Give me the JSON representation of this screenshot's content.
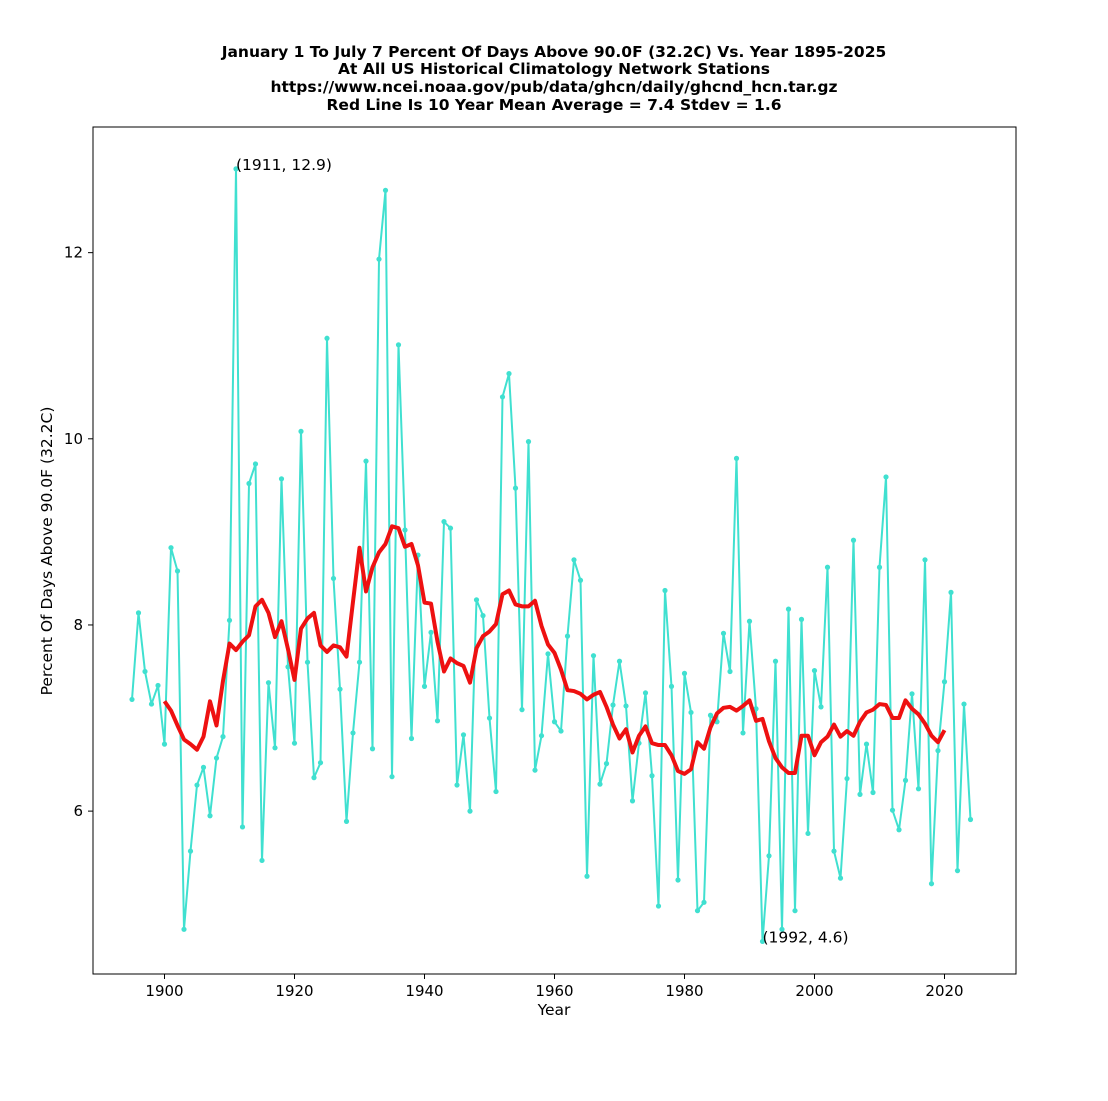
{
  "chart_data": {
    "type": "line",
    "title_lines": [
      "January 1 To July 7 Percent Of Days Above 90.0F (32.2C) Vs. Year 1895-2025",
      "At All US Historical Climatology Network Stations",
      "https://www.ncei.noaa.gov/pub/data/ghcn/daily/ghcnd_hcn.tar.gz",
      "Red Line Is 10 Year Mean  Average = 7.4 Stdev = 1.6"
    ],
    "xlabel": "Year",
    "ylabel": "Percent Of Days Above 90.0F (32.2C)",
    "xlim": [
      1889,
      2031
    ],
    "ylim": [
      4.25,
      13.35
    ],
    "xticks": [
      1900,
      1920,
      1940,
      1960,
      1980,
      2000,
      2020
    ],
    "yticks": [
      6,
      8,
      10,
      12
    ],
    "grid": false,
    "series": [
      {
        "color": "#40e0d0",
        "marker": "dot",
        "x": [
          1895,
          1896,
          1897,
          1898,
          1899,
          1900,
          1901,
          1902,
          1903,
          1904,
          1905,
          1906,
          1907,
          1908,
          1909,
          1910,
          1911,
          1912,
          1913,
          1914,
          1915,
          1916,
          1917,
          1918,
          1919,
          1920,
          1921,
          1922,
          1923,
          1924,
          1925,
          1926,
          1927,
          1928,
          1929,
          1930,
          1931,
          1932,
          1933,
          1934,
          1935,
          1936,
          1937,
          1938,
          1939,
          1940,
          1941,
          1942,
          1943,
          1944,
          1945,
          1946,
          1947,
          1948,
          1949,
          1950,
          1951,
          1952,
          1953,
          1954,
          1955,
          1956,
          1957,
          1958,
          1959,
          1960,
          1961,
          1962,
          1963,
          1964,
          1965,
          1966,
          1967,
          1968,
          1969,
          1970,
          1971,
          1972,
          1973,
          1974,
          1975,
          1976,
          1977,
          1978,
          1979,
          1980,
          1981,
          1982,
          1983,
          1984,
          1985,
          1986,
          1987,
          1988,
          1989,
          1990,
          1991,
          1992,
          1993,
          1994,
          1995,
          1996,
          1997,
          1998,
          1999,
          2000,
          2001,
          2002,
          2003,
          2004,
          2005,
          2006,
          2007,
          2008,
          2009,
          2010,
          2011,
          2012,
          2013,
          2014,
          2015,
          2016,
          2017,
          2018,
          2019,
          2020,
          2021,
          2022,
          2023,
          2024,
          2025
        ],
        "values": [
          7.2,
          8.13,
          7.5,
          7.15,
          7.35,
          6.72,
          8.83,
          8.58,
          4.73,
          5.57,
          6.28,
          6.47,
          5.95,
          6.57,
          6.8,
          8.05,
          12.9,
          5.83,
          9.52,
          9.73,
          5.47,
          7.38,
          6.68,
          9.57,
          7.55,
          6.73,
          10.08,
          7.6,
          6.36,
          6.52,
          11.08,
          8.5,
          7.31,
          5.89,
          6.84,
          7.6,
          9.76,
          6.67,
          11.93,
          12.67,
          6.37,
          11.01,
          9.02,
          6.78,
          8.75,
          7.34,
          7.92,
          6.97,
          9.11,
          9.04,
          6.28,
          6.82,
          6.0,
          8.27,
          8.1,
          7.0,
          6.21,
          10.45,
          10.7,
          9.47,
          7.09,
          9.97,
          6.44,
          6.81,
          7.69,
          6.96,
          6.86,
          7.88,
          8.7,
          8.48,
          5.3,
          7.67,
          6.29,
          6.51,
          7.14,
          7.61,
          7.13,
          6.11,
          6.73,
          7.27,
          6.38,
          4.98,
          8.37,
          7.34,
          5.26,
          7.48,
          7.06,
          4.93,
          5.02,
          7.03,
          6.96,
          7.91,
          7.5,
          9.79,
          6.84,
          8.04,
          7.1,
          4.6,
          5.52,
          7.61,
          4.73,
          8.17,
          4.93,
          8.06,
          5.76,
          7.51,
          7.12,
          8.62,
          5.57,
          5.28,
          6.35,
          8.91,
          6.18,
          6.72,
          6.2,
          8.62,
          9.59,
          6.01,
          5.8,
          6.33,
          7.26,
          6.24,
          8.7,
          5.22,
          6.65,
          7.39,
          8.35,
          5.36,
          7.15,
          5.91,
          null
        ]
      },
      {
        "color": "#ee1111",
        "marker": "none",
        "x": [
          1900,
          1901,
          1902,
          1903,
          1904,
          1905,
          1906,
          1907,
          1908,
          1909,
          1910,
          1911,
          1912,
          1913,
          1914,
          1915,
          1916,
          1917,
          1918,
          1919,
          1920,
          1921,
          1922,
          1923,
          1924,
          1925,
          1926,
          1927,
          1928,
          1929,
          1930,
          1931,
          1932,
          1933,
          1934,
          1935,
          1936,
          1937,
          1938,
          1939,
          1940,
          1941,
          1942,
          1943,
          1944,
          1945,
          1946,
          1947,
          1948,
          1949,
          1950,
          1951,
          1952,
          1953,
          1954,
          1955,
          1956,
          1957,
          1958,
          1959,
          1960,
          1961,
          1962,
          1963,
          1964,
          1965,
          1966,
          1967,
          1968,
          1969,
          1970,
          1971,
          1972,
          1973,
          1974,
          1975,
          1976,
          1977,
          1978,
          1979,
          1980,
          1981,
          1982,
          1983,
          1984,
          1985,
          1986,
          1987,
          1988,
          1989,
          1990,
          1991,
          1992,
          1993,
          1994,
          1995,
          1996,
          1997,
          1998,
          1999,
          2000,
          2001,
          2002,
          2003,
          2004,
          2005,
          2006,
          2007,
          2008,
          2009,
          2010,
          2011,
          2012,
          2013,
          2014,
          2015,
          2016,
          2017,
          2018,
          2019,
          2020
        ],
        "values": [
          7.18,
          7.08,
          6.92,
          6.77,
          6.72,
          6.66,
          6.8,
          7.18,
          6.92,
          7.4,
          7.8,
          7.73,
          7.82,
          7.89,
          8.2,
          8.27,
          8.13,
          7.87,
          8.04,
          7.74,
          7.41,
          7.96,
          8.07,
          8.13,
          7.78,
          7.71,
          7.78,
          7.76,
          7.66,
          8.25,
          8.83,
          8.36,
          8.62,
          8.78,
          8.87,
          9.06,
          9.04,
          8.84,
          8.87,
          8.64,
          8.24,
          8.23,
          7.82,
          7.5,
          7.64,
          7.59,
          7.56,
          7.38,
          7.75,
          7.88,
          7.93,
          8.01,
          8.33,
          8.37,
          8.22,
          8.2,
          8.2,
          8.26,
          7.99,
          7.79,
          7.7,
          7.52,
          7.3,
          7.29,
          7.26,
          7.2,
          7.25,
          7.28,
          7.12,
          6.93,
          6.78,
          6.88,
          6.63,
          6.81,
          6.91,
          6.73,
          6.71,
          6.71,
          6.6,
          6.43,
          6.4,
          6.45,
          6.74,
          6.67,
          6.9,
          7.05,
          7.11,
          7.12,
          7.08,
          7.13,
          7.19,
          6.97,
          6.99,
          6.75,
          6.57,
          6.47,
          6.41,
          6.41,
          6.81,
          6.81,
          6.6,
          6.74,
          6.8,
          6.93,
          6.8,
          6.86,
          6.81,
          6.96,
          7.06,
          7.09,
          7.15,
          7.14,
          7.0,
          7.0,
          7.19,
          7.1,
          7.04,
          6.94,
          6.81,
          6.74,
          6.87
        ]
      }
    ],
    "annotations": [
      {
        "text": "(1911, 12.9)",
        "x": 1911,
        "y": 12.9
      },
      {
        "text": "(1992, 4.6)",
        "x": 1992,
        "y": 4.6
      }
    ]
  }
}
